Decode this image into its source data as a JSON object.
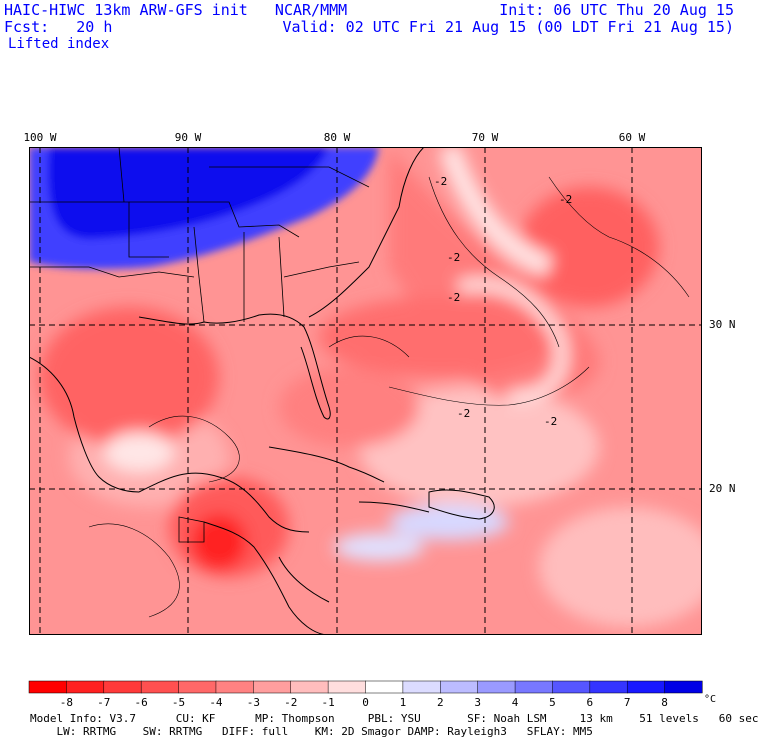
{
  "header": {
    "title": "HAIC-HIWC 13km ARW-GFS init   NCAR/MMM",
    "forecast": "Fcst:   20 h",
    "field": "Lifted index",
    "init": "Init: 06 UTC Thu 20 Aug 15",
    "valid": "Valid: 02 UTC Fri 21 Aug 15 (00 LDT Fri 21 Aug 15)"
  },
  "grid": {
    "lon_labels": [
      "100 W",
      "90 W",
      "80 W",
      "70 W",
      "60 W"
    ],
    "lat_labels": [
      "30 N",
      "20 N"
    ]
  },
  "contour_label": "-2",
  "colorbar": {
    "ticks": [
      "-8",
      "-7",
      "-6",
      "-5",
      "-4",
      "-3",
      "-2",
      "-1",
      "0",
      "1",
      "2",
      "3",
      "4",
      "5",
      "6",
      "7",
      "8"
    ],
    "unit": "°C",
    "colors": [
      "#ff0000",
      "#ff2020",
      "#ff3a3a",
      "#ff5050",
      "#ff6868",
      "#ff8282",
      "#ff9e9e",
      "#ffbdbd",
      "#ffdede",
      "#ffffff",
      "#dcdcff",
      "#bcbcff",
      "#9a9aff",
      "#7878ff",
      "#5656ff",
      "#3434ff",
      "#1818ff",
      "#0000e6"
    ]
  },
  "model_info": {
    "line1": "Model Info: V3.7      CU: KF      MP: Thompson     PBL: YSU       SF: Noah LSM     13 km    51 levels   60 sec",
    "line2": "    LW: RRTMG    SW: RRTMG   DIFF: full    KM: 2D Smagor DAMP: Rayleigh3   SFLAY: MM5"
  }
}
